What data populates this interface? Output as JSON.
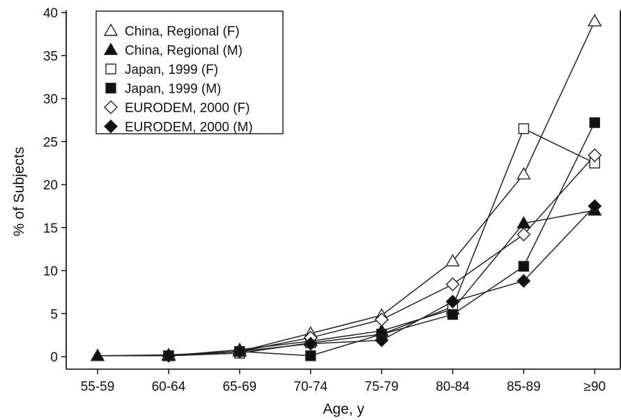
{
  "chart_data": {
    "type": "line",
    "title": "",
    "xlabel": "Age, y",
    "ylabel": "% of Subjects",
    "categories": [
      "55-59",
      "60-64",
      "65-69",
      "70-74",
      "75-79",
      "80-84",
      "85-89",
      "≥90"
    ],
    "ylim": [
      0,
      40
    ],
    "yticks": [
      0,
      5,
      10,
      15,
      20,
      25,
      30,
      35,
      40
    ],
    "grid": false,
    "legend_position": "top-left",
    "series": [
      {
        "name": "China, Regional (F)",
        "marker": "triangle-open",
        "values": [
          0.1,
          0.2,
          0.6,
          2.7,
          4.8,
          11.1,
          21.2,
          39.0
        ]
      },
      {
        "name": "China, Regional (M)",
        "marker": "triangle-filled",
        "values": [
          0.1,
          0.1,
          0.8,
          1.8,
          3.0,
          5.5,
          15.5,
          17.0
        ]
      },
      {
        "name": "Japan, 1999 (F)",
        "marker": "square-open",
        "values": [
          null,
          0.1,
          0.4,
          1.6,
          2.6,
          5.8,
          26.5,
          22.5
        ]
      },
      {
        "name": "Japan, 1999 (M)",
        "marker": "square-filled",
        "values": [
          null,
          0.1,
          0.6,
          0.1,
          2.6,
          4.9,
          10.5,
          27.2
        ]
      },
      {
        "name": "EURODEM, 2000 (F)",
        "marker": "diamond-open",
        "values": [
          null,
          0.1,
          0.6,
          2.2,
          4.3,
          8.4,
          14.2,
          23.4
        ]
      },
      {
        "name": "EURODEM, 2000 (M)",
        "marker": "diamond-filled",
        "values": [
          null,
          0.1,
          0.6,
          1.5,
          1.9,
          6.4,
          8.8,
          17.5
        ]
      }
    ],
    "colors": {
      "line": "#222222",
      "marker_fill": "#111111",
      "open_fill": "#ffffff"
    }
  }
}
